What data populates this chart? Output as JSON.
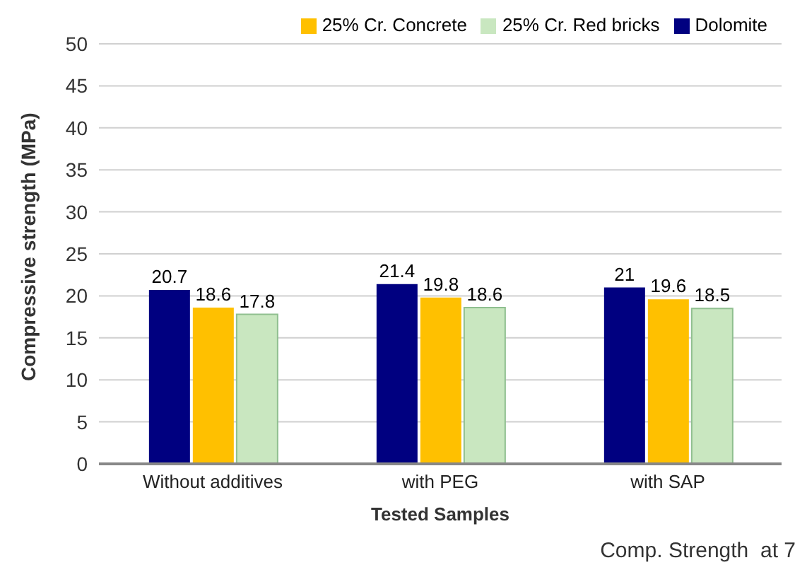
{
  "chart_data": {
    "type": "bar",
    "xlabel": "Tested Samples",
    "ylabel": "Compressive strength (MPa)",
    "categories": [
      "Without additives",
      "with PEG",
      "with SAP"
    ],
    "series": [
      {
        "name": "Dolomite",
        "color": "#000080",
        "values": [
          20.7,
          21.4,
          21
        ]
      },
      {
        "name": "25% Cr. Concrete",
        "color": "#ffc000",
        "values": [
          18.6,
          19.8,
          19.6
        ]
      },
      {
        "name": "25% Cr. Red bricks",
        "color": "#c9e7c0",
        "values": [
          17.8,
          18.6,
          18.5
        ]
      }
    ],
    "ylim": [
      0,
      50
    ],
    "yticks": [
      0,
      5,
      10,
      15,
      20,
      25,
      30,
      35,
      40,
      45,
      50
    ],
    "grid": "y",
    "legend": "top right",
    "data_labels": true,
    "annotations": [
      "Comp. Strength  at 7"
    ]
  }
}
